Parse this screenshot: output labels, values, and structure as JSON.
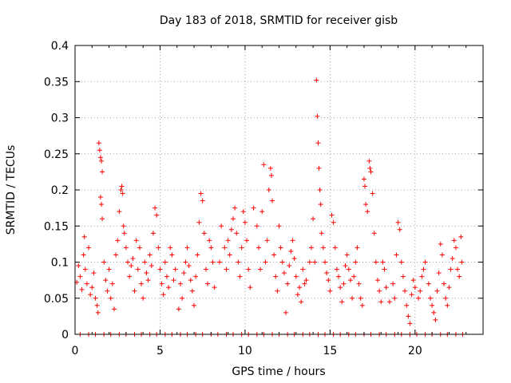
{
  "chart_data": {
    "type": "scatter",
    "title": "Day 183 of 2018, SRMTID for receiver gisb",
    "xlabel": "GPS time / hours",
    "ylabel": "SRMTID / TECUs",
    "xlim": [
      0,
      24
    ],
    "ylim": [
      0,
      0.4
    ],
    "xticks": [
      0,
      5,
      10,
      15,
      20
    ],
    "yticks": [
      0,
      0.05,
      0.1,
      0.15,
      0.2,
      0.25,
      0.3,
      0.35,
      0.4
    ],
    "xtick_labels": [
      "0",
      "5",
      "10",
      "15",
      "20"
    ],
    "ytick_labels": [
      "0",
      "0.05",
      "0.1",
      "0.15",
      "0.2",
      "0.25",
      "0.3",
      "0.35",
      "0.4"
    ],
    "grid": true,
    "marker": "+",
    "color": "#ff0000",
    "series": [
      {
        "name": "SRMTID",
        "points": [
          [
            0.1,
            0.072
          ],
          [
            0.2,
            0.095
          ],
          [
            0.3,
            0.08
          ],
          [
            0.4,
            0.062
          ],
          [
            0.5,
            0.11
          ],
          [
            0.55,
            0.135
          ],
          [
            0.6,
            0.09
          ],
          [
            0.7,
            0.07
          ],
          [
            0.8,
            0.12
          ],
          [
            0.9,
            0.055
          ],
          [
            1.0,
            0.065
          ],
          [
            1.1,
            0.085
          ],
          [
            1.2,
            0.05
          ],
          [
            1.3,
            0.04
          ],
          [
            1.35,
            0.03
          ],
          [
            1.4,
            0.265
          ],
          [
            1.45,
            0.255
          ],
          [
            1.5,
            0.245
          ],
          [
            1.55,
            0.24
          ],
          [
            1.6,
            0.225
          ],
          [
            1.5,
            0.19
          ],
          [
            1.55,
            0.18
          ],
          [
            1.6,
            0.16
          ],
          [
            1.7,
            0.1
          ],
          [
            1.8,
            0.075
          ],
          [
            1.9,
            0.06
          ],
          [
            2.0,
            0.09
          ],
          [
            2.1,
            0.05
          ],
          [
            2.2,
            0.07
          ],
          [
            2.3,
            0.035
          ],
          [
            2.4,
            0.11
          ],
          [
            2.5,
            0.13
          ],
          [
            2.6,
            0.17
          ],
          [
            2.7,
            0.2
          ],
          [
            2.75,
            0.205
          ],
          [
            2.8,
            0.195
          ],
          [
            2.85,
            0.15
          ],
          [
            2.9,
            0.14
          ],
          [
            3.0,
            0.12
          ],
          [
            3.1,
            0.1
          ],
          [
            3.2,
            0.08
          ],
          [
            3.3,
            0.095
          ],
          [
            3.4,
            0.105
          ],
          [
            3.5,
            0.06
          ],
          [
            3.6,
            0.13
          ],
          [
            3.7,
            0.09
          ],
          [
            3.8,
            0.12
          ],
          [
            3.9,
            0.07
          ],
          [
            4.0,
            0.05
          ],
          [
            4.1,
            0.1
          ],
          [
            4.2,
            0.085
          ],
          [
            4.3,
            0.075
          ],
          [
            4.4,
            0.11
          ],
          [
            4.5,
            0.095
          ],
          [
            4.6,
            0.14
          ],
          [
            4.7,
            0.175
          ],
          [
            4.8,
            0.165
          ],
          [
            4.9,
            0.12
          ],
          [
            5.0,
            0.09
          ],
          [
            5.1,
            0.07
          ],
          [
            5.2,
            0.055
          ],
          [
            5.3,
            0.1
          ],
          [
            5.4,
            0.08
          ],
          [
            5.5,
            0.065
          ],
          [
            5.6,
            0.12
          ],
          [
            5.7,
            0.11
          ],
          [
            5.8,
            0.075
          ],
          [
            5.9,
            0.09
          ],
          [
            6.1,
            0.035
          ],
          [
            6.2,
            0.07
          ],
          [
            6.3,
            0.05
          ],
          [
            6.4,
            0.085
          ],
          [
            6.5,
            0.1
          ],
          [
            6.6,
            0.12
          ],
          [
            6.7,
            0.095
          ],
          [
            6.8,
            0.075
          ],
          [
            6.9,
            0.06
          ],
          [
            7.0,
            0.04
          ],
          [
            7.1,
            0.08
          ],
          [
            7.2,
            0.11
          ],
          [
            7.3,
            0.155
          ],
          [
            7.4,
            0.195
          ],
          [
            7.5,
            0.185
          ],
          [
            7.6,
            0.14
          ],
          [
            7.7,
            0.09
          ],
          [
            7.8,
            0.07
          ],
          [
            7.9,
            0.13
          ],
          [
            8.0,
            0.12
          ],
          [
            8.1,
            0.1
          ],
          [
            8.2,
            0.065
          ],
          [
            8.5,
            0.1
          ],
          [
            8.6,
            0.15
          ],
          [
            8.8,
            0.12
          ],
          [
            8.9,
            0.09
          ],
          [
            9.0,
            0.13
          ],
          [
            9.1,
            0.11
          ],
          [
            9.2,
            0.145
          ],
          [
            9.3,
            0.16
          ],
          [
            9.4,
            0.175
          ],
          [
            9.5,
            0.14
          ],
          [
            9.6,
            0.1
          ],
          [
            9.7,
            0.08
          ],
          [
            9.8,
            0.12
          ],
          [
            9.9,
            0.17
          ],
          [
            10.0,
            0.155
          ],
          [
            10.1,
            0.13
          ],
          [
            10.2,
            0.09
          ],
          [
            10.3,
            0.065
          ],
          [
            10.5,
            0.175
          ],
          [
            10.7,
            0.15
          ],
          [
            10.8,
            0.12
          ],
          [
            10.9,
            0.09
          ],
          [
            11.0,
            0.17
          ],
          [
            11.1,
            0.235
          ],
          [
            11.2,
            0.1
          ],
          [
            11.3,
            0.13
          ],
          [
            11.4,
            0.2
          ],
          [
            11.5,
            0.23
          ],
          [
            11.55,
            0.22
          ],
          [
            11.6,
            0.185
          ],
          [
            11.7,
            0.11
          ],
          [
            11.8,
            0.08
          ],
          [
            11.9,
            0.06
          ],
          [
            12.0,
            0.15
          ],
          [
            12.1,
            0.12
          ],
          [
            12.2,
            0.1
          ],
          [
            12.3,
            0.085
          ],
          [
            12.4,
            0.03
          ],
          [
            12.5,
            0.07
          ],
          [
            12.6,
            0.095
          ],
          [
            12.7,
            0.115
          ],
          [
            12.8,
            0.13
          ],
          [
            12.9,
            0.105
          ],
          [
            13.0,
            0.08
          ],
          [
            13.1,
            0.055
          ],
          [
            13.2,
            0.065
          ],
          [
            13.3,
            0.045
          ],
          [
            13.4,
            0.09
          ],
          [
            13.5,
            0.07
          ],
          [
            13.6,
            0.075
          ],
          [
            13.8,
            0.1
          ],
          [
            13.9,
            0.12
          ],
          [
            14.0,
            0.16
          ],
          [
            14.1,
            0.1
          ],
          [
            14.2,
            0.352
          ],
          [
            14.25,
            0.302
          ],
          [
            14.3,
            0.265
          ],
          [
            14.35,
            0.23
          ],
          [
            14.4,
            0.2
          ],
          [
            14.45,
            0.18
          ],
          [
            14.5,
            0.14
          ],
          [
            14.6,
            0.12
          ],
          [
            14.7,
            0.1
          ],
          [
            14.8,
            0.085
          ],
          [
            14.9,
            0.075
          ],
          [
            15.0,
            0.06
          ],
          [
            15.1,
            0.165
          ],
          [
            15.2,
            0.155
          ],
          [
            15.3,
            0.12
          ],
          [
            15.4,
            0.09
          ],
          [
            15.5,
            0.08
          ],
          [
            15.6,
            0.065
          ],
          [
            15.7,
            0.045
          ],
          [
            15.8,
            0.07
          ],
          [
            15.9,
            0.095
          ],
          [
            16.0,
            0.11
          ],
          [
            16.1,
            0.09
          ],
          [
            16.2,
            0.075
          ],
          [
            16.3,
            0.05
          ],
          [
            16.4,
            0.08
          ],
          [
            16.5,
            0.1
          ],
          [
            16.6,
            0.12
          ],
          [
            16.7,
            0.07
          ],
          [
            16.8,
            0.05
          ],
          [
            16.9,
            0.04
          ],
          [
            17.0,
            0.215
          ],
          [
            17.05,
            0.205
          ],
          [
            17.1,
            0.18
          ],
          [
            17.2,
            0.17
          ],
          [
            17.3,
            0.24
          ],
          [
            17.35,
            0.23
          ],
          [
            17.4,
            0.225
          ],
          [
            17.5,
            0.195
          ],
          [
            17.6,
            0.14
          ],
          [
            17.7,
            0.1
          ],
          [
            17.8,
            0.075
          ],
          [
            17.9,
            0.06
          ],
          [
            18.0,
            0.045
          ],
          [
            18.1,
            0.1
          ],
          [
            18.2,
            0.09
          ],
          [
            18.3,
            0.065
          ],
          [
            18.5,
            0.045
          ],
          [
            18.7,
            0.07
          ],
          [
            18.8,
            0.05
          ],
          [
            18.9,
            0.11
          ],
          [
            19.0,
            0.155
          ],
          [
            19.1,
            0.145
          ],
          [
            19.2,
            0.1
          ],
          [
            19.3,
            0.08
          ],
          [
            19.4,
            0.06
          ],
          [
            19.5,
            0.04
          ],
          [
            19.6,
            0.025
          ],
          [
            19.7,
            0.015
          ],
          [
            19.8,
            0.055
          ],
          [
            19.9,
            0.075
          ],
          [
            20.0,
            0.065
          ],
          [
            20.2,
            0.05
          ],
          [
            20.3,
            0.06
          ],
          [
            20.4,
            0.08
          ],
          [
            20.5,
            0.09
          ],
          [
            20.6,
            0.1
          ],
          [
            20.8,
            0.07
          ],
          [
            20.9,
            0.05
          ],
          [
            21.0,
            0.04
          ],
          [
            21.1,
            0.03
          ],
          [
            21.2,
            0.02
          ],
          [
            21.3,
            0.06
          ],
          [
            21.4,
            0.085
          ],
          [
            21.5,
            0.125
          ],
          [
            21.6,
            0.11
          ],
          [
            21.7,
            0.07
          ],
          [
            21.8,
            0.05
          ],
          [
            21.9,
            0.04
          ],
          [
            22.0,
            0.065
          ],
          [
            22.1,
            0.09
          ],
          [
            22.2,
            0.105
          ],
          [
            22.3,
            0.13
          ],
          [
            22.4,
            0.12
          ],
          [
            22.5,
            0.09
          ],
          [
            22.6,
            0.08
          ],
          [
            22.7,
            0.135
          ],
          [
            22.75,
            0.1
          ],
          [
            0.3,
            0.0
          ],
          [
            0.8,
            0.0
          ],
          [
            1.2,
            0.0
          ],
          [
            1.7,
            0.0
          ],
          [
            2.1,
            0.0
          ],
          [
            2.6,
            0.0
          ],
          [
            3.0,
            0.0
          ],
          [
            3.5,
            0.0
          ],
          [
            3.9,
            0.0
          ],
          [
            4.4,
            0.0
          ],
          [
            4.8,
            0.0
          ],
          [
            5.3,
            0.0
          ],
          [
            5.7,
            0.0
          ],
          [
            6.2,
            0.0
          ],
          [
            6.6,
            0.0
          ],
          [
            7.1,
            0.0
          ],
          [
            7.5,
            0.0
          ],
          [
            8.0,
            0.0
          ],
          [
            8.4,
            0.0
          ],
          [
            8.9,
            0.0
          ],
          [
            9.3,
            0.0
          ],
          [
            9.8,
            0.0
          ],
          [
            10.2,
            0.0
          ],
          [
            10.7,
            0.0
          ],
          [
            11.1,
            0.0
          ],
          [
            11.6,
            0.0
          ],
          [
            12.0,
            0.0
          ],
          [
            12.5,
            0.0
          ],
          [
            12.9,
            0.0
          ],
          [
            13.4,
            0.0
          ],
          [
            13.8,
            0.0
          ],
          [
            14.3,
            0.0
          ],
          [
            14.7,
            0.0
          ],
          [
            15.2,
            0.0
          ],
          [
            15.6,
            0.0
          ],
          [
            16.1,
            0.0
          ],
          [
            16.5,
            0.0
          ],
          [
            17.0,
            0.0
          ],
          [
            17.4,
            0.0
          ],
          [
            17.9,
            0.0
          ],
          [
            18.3,
            0.0
          ],
          [
            18.8,
            0.0
          ],
          [
            19.2,
            0.0
          ],
          [
            19.7,
            0.0
          ],
          [
            20.1,
            0.0
          ],
          [
            20.6,
            0.0
          ],
          [
            21.0,
            0.0
          ],
          [
            21.5,
            0.0
          ],
          [
            21.9,
            0.0
          ],
          [
            22.4,
            0.0
          ],
          [
            22.8,
            0.0
          ]
        ]
      }
    ]
  }
}
